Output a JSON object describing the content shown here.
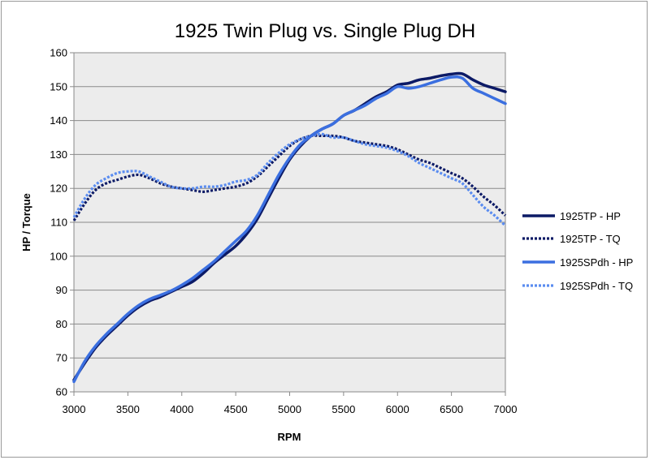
{
  "chart_data": {
    "type": "line",
    "title": "1925 Twin Plug vs. Single Plug DH",
    "xlabel": "RPM",
    "ylabel": "HP / Torque",
    "xlim": [
      3000,
      7000
    ],
    "ylim": [
      60,
      160
    ],
    "xticks": [
      3000,
      3500,
      4000,
      4500,
      5000,
      5500,
      6000,
      6500,
      7000
    ],
    "yticks": [
      60,
      70,
      80,
      90,
      100,
      110,
      120,
      130,
      140,
      150,
      160
    ],
    "grid": "horizontal",
    "background": "#ececec",
    "legend_position": "right",
    "series": [
      {
        "name": "1925TP - HP",
        "color": "#0c1a66",
        "dash": "solid",
        "x": [
          3000,
          3100,
          3200,
          3300,
          3400,
          3500,
          3600,
          3700,
          3800,
          3900,
          4000,
          4100,
          4200,
          4300,
          4400,
          4500,
          4600,
          4700,
          4800,
          4900,
          5000,
          5100,
          5200,
          5300,
          5400,
          5500,
          5600,
          5700,
          5800,
          5900,
          6000,
          6100,
          6200,
          6300,
          6400,
          6500,
          6600,
          6700,
          6800,
          6900,
          7000
        ],
        "values": [
          63.5,
          68.5,
          73,
          76.5,
          79.5,
          82.5,
          85,
          86.8,
          88,
          89.5,
          91,
          92.5,
          95,
          98,
          100.5,
          103,
          106.5,
          111,
          117,
          123,
          128.5,
          132.5,
          135.5,
          137.5,
          139,
          141.5,
          143,
          145,
          147,
          148.5,
          150.5,
          151,
          152,
          152.5,
          153.2,
          153.7,
          153.8,
          152,
          150.5,
          149.5,
          148.5
        ]
      },
      {
        "name": "1925TP - TQ",
        "color": "#0c1a66",
        "dash": "dotted",
        "x": [
          3000,
          3100,
          3200,
          3300,
          3400,
          3500,
          3600,
          3700,
          3800,
          3900,
          4000,
          4100,
          4200,
          4300,
          4400,
          4500,
          4600,
          4700,
          4800,
          4900,
          5000,
          5100,
          5200,
          5300,
          5400,
          5500,
          5600,
          5700,
          5800,
          5900,
          6000,
          6100,
          6200,
          6300,
          6400,
          6500,
          6600,
          6700,
          6800,
          6900,
          7000
        ],
        "values": [
          110.5,
          115.5,
          119.5,
          121.5,
          122.5,
          123.5,
          124,
          123,
          121.5,
          120.5,
          120,
          119.5,
          119,
          119.5,
          120,
          120.5,
          121.5,
          123.5,
          126.5,
          129.5,
          132.5,
          134.5,
          135.5,
          135.5,
          135.5,
          135,
          134,
          133.5,
          133,
          132.5,
          131.5,
          130,
          128.5,
          127.5,
          126,
          124.5,
          123,
          120.5,
          117.5,
          115,
          112
        ]
      },
      {
        "name": "1925SPdh - HP",
        "color": "#3b6fe0",
        "dash": "solid",
        "x": [
          3000,
          3100,
          3200,
          3300,
          3400,
          3500,
          3600,
          3700,
          3800,
          3900,
          4000,
          4100,
          4200,
          4300,
          4400,
          4500,
          4600,
          4700,
          4800,
          4900,
          5000,
          5100,
          5200,
          5300,
          5400,
          5500,
          5600,
          5700,
          5800,
          5900,
          6000,
          6100,
          6200,
          6300,
          6400,
          6500,
          6600,
          6700,
          6800,
          6900,
          7000
        ],
        "values": [
          63,
          69,
          73.5,
          77,
          80,
          83,
          85.5,
          87.3,
          88.5,
          89.8,
          91.5,
          93.5,
          96,
          98.5,
          101.5,
          104.5,
          107.5,
          112,
          118,
          124,
          129,
          133,
          135.5,
          137.5,
          139,
          141.5,
          143,
          144.5,
          146.5,
          148,
          150,
          149.5,
          150,
          151,
          152,
          152.8,
          152.5,
          149.5,
          148,
          146.5,
          145
        ]
      },
      {
        "name": "1925SPdh - TQ",
        "color": "#5a8cf0",
        "dash": "dotted",
        "x": [
          3000,
          3100,
          3200,
          3300,
          3400,
          3500,
          3600,
          3700,
          3800,
          3900,
          4000,
          4100,
          4200,
          4300,
          4400,
          4500,
          4600,
          4700,
          4800,
          4900,
          5000,
          5100,
          5200,
          5300,
          5400,
          5500,
          5600,
          5700,
          5800,
          5900,
          6000,
          6100,
          6200,
          6300,
          6400,
          6500,
          6600,
          6700,
          6800,
          6900,
          7000
        ],
        "values": [
          111.5,
          117,
          121,
          123,
          124.5,
          125,
          125,
          123.5,
          122,
          120.5,
          120,
          120,
          120.5,
          120.5,
          121,
          122,
          122.5,
          124,
          127.5,
          130.5,
          133,
          134.5,
          135.5,
          136,
          135,
          135,
          134,
          133,
          132.5,
          132,
          131,
          129.5,
          127.5,
          126,
          124.5,
          123,
          121.5,
          118,
          114.5,
          112,
          109
        ]
      }
    ]
  }
}
